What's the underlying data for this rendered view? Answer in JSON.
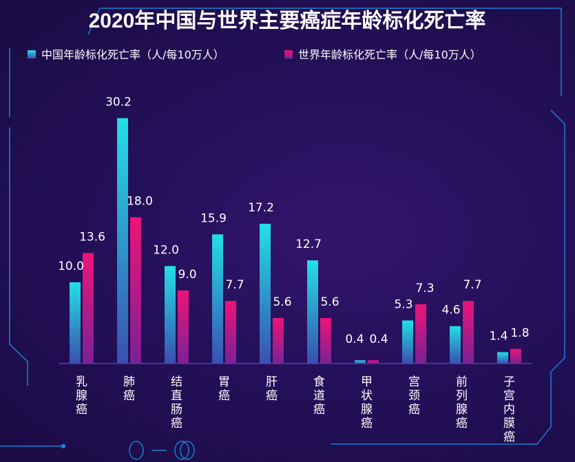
{
  "chart_data": {
    "type": "bar",
    "title": "2020年中国与世界主要癌症年龄标化死亡率",
    "categories": [
      "乳腺癌",
      "肺癌",
      "结直肠癌",
      "胃癌",
      "肝癌",
      "食道癌",
      "甲状腺癌",
      "宫颈癌",
      "前列腺癌",
      "子宫内膜癌"
    ],
    "series": [
      {
        "name": "中国年龄标化死亡率（人/每10万人）",
        "values": [
          10.0,
          30.2,
          12.0,
          15.9,
          17.2,
          12.7,
          0.4,
          5.3,
          4.6,
          1.4
        ],
        "color": "#22d3e0"
      },
      {
        "name": "世界年龄标化死亡率（人/每10万人）",
        "values": [
          13.6,
          18.0,
          9.0,
          7.7,
          5.6,
          5.6,
          0.4,
          7.3,
          7.7,
          1.8
        ],
        "color": "#e8177e"
      }
    ],
    "ylim": [
      0,
      31
    ],
    "grid": false,
    "legend": "top",
    "data_labels": true
  }
}
